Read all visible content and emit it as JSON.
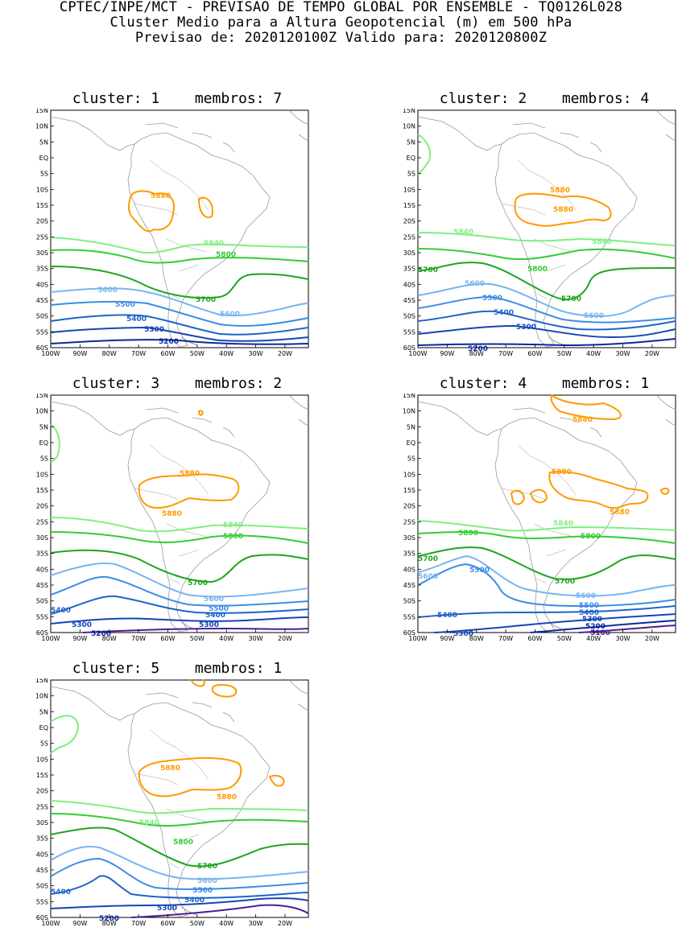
{
  "header": {
    "line1": "CPTEC/INPE/MCT - PREVISAO DE TEMPO GLOBAL POR ENSEMBLE - TQ0126L028",
    "line2": "Cluster Medio para a Altura Geopotencial (m) em 500 hPa",
    "line3": "Previsao de: 2020120100Z   Valido para: 2020120800Z"
  },
  "axes": {
    "lat_labels": [
      "15N",
      "10N",
      "5N",
      "EQ",
      "5S",
      "10S",
      "15S",
      "20S",
      "25S",
      "30S",
      "35S",
      "40S",
      "45S",
      "50S",
      "55S",
      "60S"
    ],
    "lon_labels": [
      "100W",
      "90W",
      "80W",
      "70W",
      "60W",
      "50W",
      "40W",
      "30W",
      "20W"
    ]
  },
  "colors": {
    "c5880": "#ff9a00",
    "c5840": "#7fef7f",
    "c5800": "#33cc33",
    "c5700": "#1ea51e",
    "c5600": "#78b4f0",
    "c5500": "#3c8ce6",
    "c5400": "#1e64c8",
    "c5300": "#1446b4",
    "c5200": "#0a28a0",
    "c5100": "#4b1e96",
    "coast": "#999999"
  },
  "panels": [
    {
      "cluster_label": "cluster:",
      "cluster": "1",
      "members_label": "membros:",
      "members": "7",
      "contour_labels": [
        "5880",
        "5840",
        "5800",
        "5700",
        "5600",
        "5500",
        "5400",
        "5300",
        "5200",
        "5600"
      ]
    },
    {
      "cluster_label": "cluster:",
      "cluster": "2",
      "members_label": "membros:",
      "members": "4",
      "contour_labels": [
        "5880",
        "5880",
        "5840",
        "5840",
        "5800",
        "5700",
        "5700",
        "5600",
        "5600",
        "5500",
        "5400",
        "5300",
        "5200"
      ]
    },
    {
      "cluster_label": "cluster:",
      "cluster": "3",
      "members_label": "membros:",
      "members": "2",
      "contour_labels": [
        "5880",
        "5880",
        "5840",
        "5800",
        "5700",
        "5600",
        "5500",
        "5400",
        "5400",
        "5300",
        "5300",
        "5200"
      ]
    },
    {
      "cluster_label": "cluster:",
      "cluster": "4",
      "members_label": "membros:",
      "members": "1",
      "contour_labels": [
        "5880",
        "5880",
        "5880",
        "5840",
        "5800",
        "5800",
        "5700",
        "5700",
        "5600",
        "5600",
        "5500",
        "5500",
        "5400",
        "5400",
        "5300",
        "5300",
        "5200",
        "5100"
      ]
    },
    {
      "cluster_label": "cluster:",
      "cluster": "5",
      "members_label": "membros:",
      "members": "1",
      "contour_labels": [
        "5880",
        "5880",
        "5840",
        "5800",
        "5700",
        "5600",
        "5500",
        "5400",
        "5400",
        "5300",
        "5200"
      ]
    }
  ]
}
